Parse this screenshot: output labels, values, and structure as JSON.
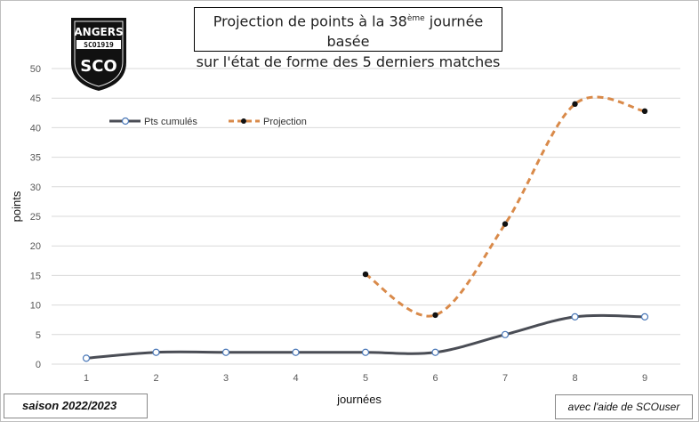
{
  "title": {
    "line1_before": "Projection de points à la 38",
    "line1_sup": "ème",
    "line1_after": " journée basée",
    "line2": "sur l'état de forme des 5 derniers matches"
  },
  "logo": {
    "text_top": "ANGERS",
    "text_band": "SCO1919",
    "text_letters": "SCO"
  },
  "footer": {
    "season": "saison 2022/2023",
    "credit": "avec l'aide de SCOuser"
  },
  "colors": {
    "cumul": "#4a4d55",
    "projection": "#d98a4a",
    "grid": "#d9d9d9",
    "marker_fill_cumul": "#ffffff",
    "marker_stroke_cumul": "#4a78b8",
    "marker_projection": "#111111"
  },
  "chart_data": {
    "type": "line",
    "xlabel": "journées",
    "ylabel": "points",
    "x": [
      1,
      2,
      3,
      4,
      5,
      6,
      7,
      8,
      9
    ],
    "ylim": [
      0,
      50
    ],
    "yticks": [
      0,
      5,
      10,
      15,
      20,
      25,
      30,
      35,
      40,
      45,
      50
    ],
    "grid": true,
    "legend_position": "top-left",
    "series": [
      {
        "name": "Pts cumulés",
        "x": [
          1,
          2,
          3,
          4,
          5,
          6,
          7,
          8,
          9
        ],
        "values": [
          1,
          2,
          2,
          2,
          2,
          2,
          5,
          8,
          8
        ],
        "style": "solid"
      },
      {
        "name": "Projection",
        "x": [
          5,
          6,
          7,
          8,
          9
        ],
        "values": [
          15.2,
          8.3,
          23.7,
          44,
          42.8
        ],
        "style": "dashed"
      }
    ]
  }
}
